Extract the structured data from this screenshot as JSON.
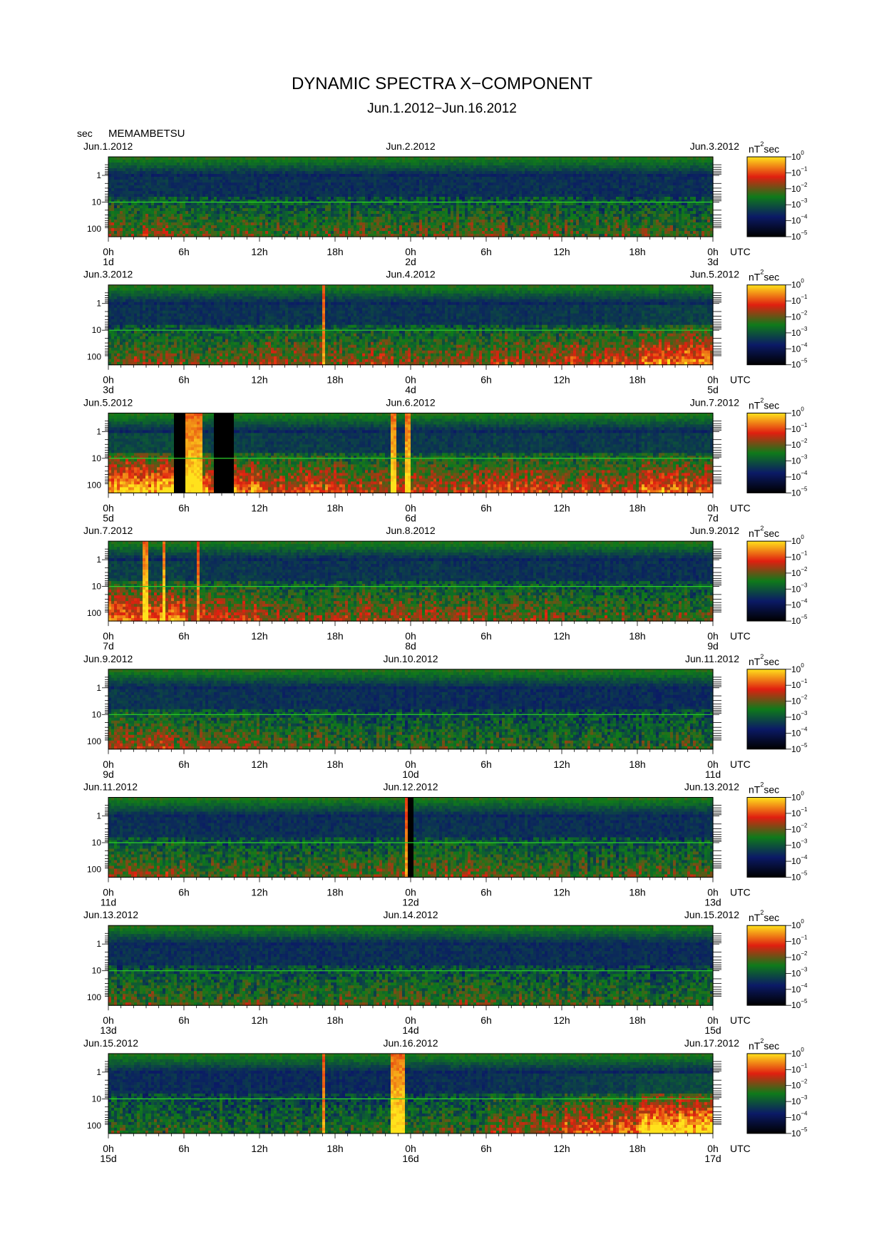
{
  "title": "DYNAMIC SPECTRA X−COMPONENT",
  "subtitle": "Jun.1.2012−Jun.16.2012",
  "station": "MEMAMBETSU",
  "y_unit": "sec",
  "colorbar_unit": "nT",
  "colorbar_unit_exp": "2",
  "colorbar_unit_suffix": "sec",
  "utc_label": "UTC",
  "colors": [
    "#000000",
    "#0b1a66",
    "#0f7a1a",
    "#e01f10",
    "#ffe21c"
  ],
  "chart_data": {
    "type": "heatmap",
    "x_ticks": [
      "0h",
      "6h",
      "12h",
      "18h",
      "0h",
      "6h",
      "12h",
      "18h",
      "0h"
    ],
    "y_ticks": [
      "1",
      "10",
      "100"
    ],
    "y_scale": "log",
    "colorbar": {
      "scale": "log",
      "tick_base": "10",
      "tick_exponents": [
        "0",
        "−1",
        "−2",
        "−3",
        "−4",
        "−5"
      ],
      "range": [
        1e-05,
        1
      ]
    },
    "panels": [
      {
        "date_left": "Jun.1.2012",
        "date_mid": "Jun.2.2012",
        "date_right": "Jun.3.2012",
        "day_left": "1d",
        "day_mid": "2d",
        "day_right": "3d",
        "activity": [
          0.35,
          0.3,
          0.28,
          0.3,
          0.32,
          0.3,
          0.28,
          0.3
        ],
        "events": []
      },
      {
        "date_left": "Jun.3.2012",
        "date_mid": "Jun.4.2012",
        "date_right": "Jun.5.2012",
        "day_left": "3d",
        "day_mid": "4d",
        "day_right": "5d",
        "activity": [
          0.35,
          0.32,
          0.4,
          0.38,
          0.35,
          0.4,
          0.45,
          0.6
        ],
        "events": [
          {
            "hour": 17.0,
            "width": 0.2,
            "kind": "spike"
          }
        ]
      },
      {
        "date_left": "Jun.5.2012",
        "date_mid": "Jun.6.2012",
        "date_right": "Jun.7.2012",
        "day_left": "5d",
        "day_mid": "6d",
        "day_right": "7d",
        "activity": [
          0.7,
          0.6,
          0.5,
          0.45,
          0.45,
          0.5,
          0.45,
          0.55
        ],
        "events": [
          {
            "hour": 5.5,
            "width": 0.8,
            "kind": "gap"
          },
          {
            "hour": 6.2,
            "width": 2.0,
            "kind": "burst"
          },
          {
            "hour": 9.1,
            "width": 1.4,
            "kind": "gap"
          },
          {
            "hour": 22.5,
            "width": 0.4,
            "kind": "burst"
          },
          {
            "hour": 23.6,
            "width": 0.4,
            "kind": "burst"
          }
        ]
      },
      {
        "date_left": "Jun.7.2012",
        "date_mid": "Jun.8.2012",
        "date_right": "Jun.9.2012",
        "day_left": "7d",
        "day_mid": "8d",
        "day_right": "9d",
        "activity": [
          0.6,
          0.45,
          0.35,
          0.4,
          0.4,
          0.35,
          0.3,
          0.3
        ],
        "events": [
          {
            "hour": 2.8,
            "width": 0.4,
            "kind": "burst"
          },
          {
            "hour": 4.3,
            "width": 0.3,
            "kind": "burst"
          },
          {
            "hour": 7.0,
            "width": 0.2,
            "kind": "spike"
          }
        ]
      },
      {
        "date_left": "Jun.9.2012",
        "date_mid": "Jun.10.2012",
        "date_right": "Jun.11.2012",
        "day_left": "9d",
        "day_mid": "10d",
        "day_right": "11d",
        "activity": [
          0.4,
          0.35,
          0.3,
          0.25,
          0.25,
          0.25,
          0.25,
          0.25
        ],
        "events": []
      },
      {
        "date_left": "Jun.11.2012",
        "date_mid": "Jun.12.2012",
        "date_right": "Jun.13.2012",
        "day_left": "11d",
        "day_mid": "12d",
        "day_right": "13d",
        "activity": [
          0.35,
          0.3,
          0.28,
          0.32,
          0.35,
          0.3,
          0.28,
          0.3
        ],
        "events": [
          {
            "hour": 23.8,
            "width": 0.3,
            "kind": "gap"
          },
          {
            "hour": 23.5,
            "width": 0.2,
            "kind": "spike"
          }
        ]
      },
      {
        "date_left": "Jun.13.2012",
        "date_mid": "Jun.14.2012",
        "date_right": "Jun.15.2012",
        "day_left": "13d",
        "day_mid": "14d",
        "day_right": "15d",
        "activity": [
          0.3,
          0.28,
          0.25,
          0.28,
          0.3,
          0.28,
          0.25,
          0.25
        ],
        "events": []
      },
      {
        "date_left": "Jun.15.2012",
        "date_mid": "Jun.16.2012",
        "date_right": "Jun.17.2012",
        "day_left": "15d",
        "day_mid": "16d",
        "day_right": "17d",
        "activity": [
          0.25,
          0.22,
          0.2,
          0.22,
          0.25,
          0.4,
          0.55,
          0.75
        ],
        "events": [
          {
            "hour": 17.0,
            "width": 0.3,
            "kind": "spike"
          },
          {
            "hour": 22.8,
            "width": 1.0,
            "kind": "burst"
          }
        ]
      }
    ]
  }
}
